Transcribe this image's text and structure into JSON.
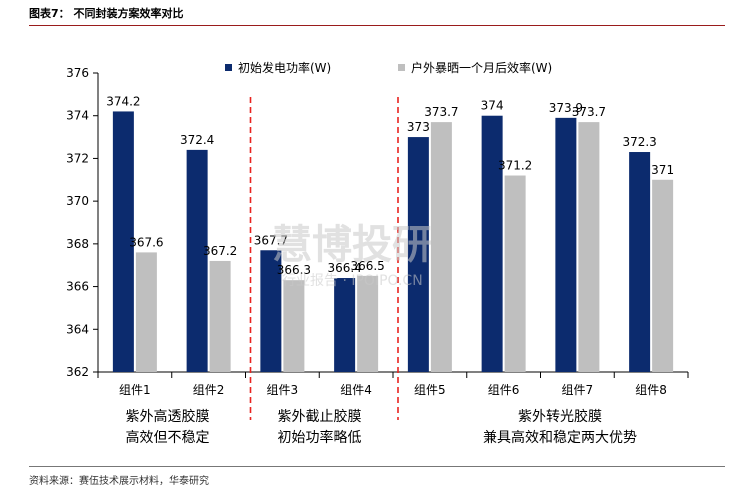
{
  "page_title": "图表7： 不同封装方案效率对比",
  "source_note": "资料来源：赛伍技术展示材料，华泰研究",
  "watermark": {
    "main": "慧博投研",
    "sub": "行业报告 · IPOIPO.CN"
  },
  "chart_data": {
    "type": "bar",
    "categories": [
      "组件1",
      "组件2",
      "组件3",
      "组件4",
      "组件5",
      "组件6",
      "组件7",
      "组件8"
    ],
    "series": [
      {
        "name": "初始发电功率(W)",
        "color": "#0c2b6e",
        "values": [
          374.2,
          372.4,
          367.7,
          366.4,
          373,
          374,
          373.9,
          372.3
        ]
      },
      {
        "name": "户外暴晒一个月后效率(W)",
        "color": "#bfbfbf",
        "values": [
          367.6,
          367.2,
          366.3,
          366.5,
          373.7,
          371.2,
          373.7,
          371
        ]
      }
    ],
    "value_labels": [
      [
        "374.2",
        "372.4",
        "367.7",
        "366.4",
        "373",
        "374",
        "373.9",
        "372.3"
      ],
      [
        "367.6",
        "367.2",
        "366.3",
        "366.5",
        "373.7",
        "371.2",
        "373.7",
        "371"
      ]
    ],
    "ylim": [
      362,
      376
    ],
    "yticks": [
      362,
      364,
      366,
      368,
      370,
      372,
      374,
      376
    ],
    "legend_position": "top",
    "grid": false,
    "separator_color": "#e8231f"
  },
  "groups": [
    {
      "line1": "紫外高透胶膜",
      "line2": "高效但不稳定"
    },
    {
      "line1": "紫外截止胶膜",
      "line2": "初始功率略低"
    },
    {
      "line1": "紫外转光胶膜",
      "line2": "兼具高效和稳定两大优势"
    }
  ]
}
